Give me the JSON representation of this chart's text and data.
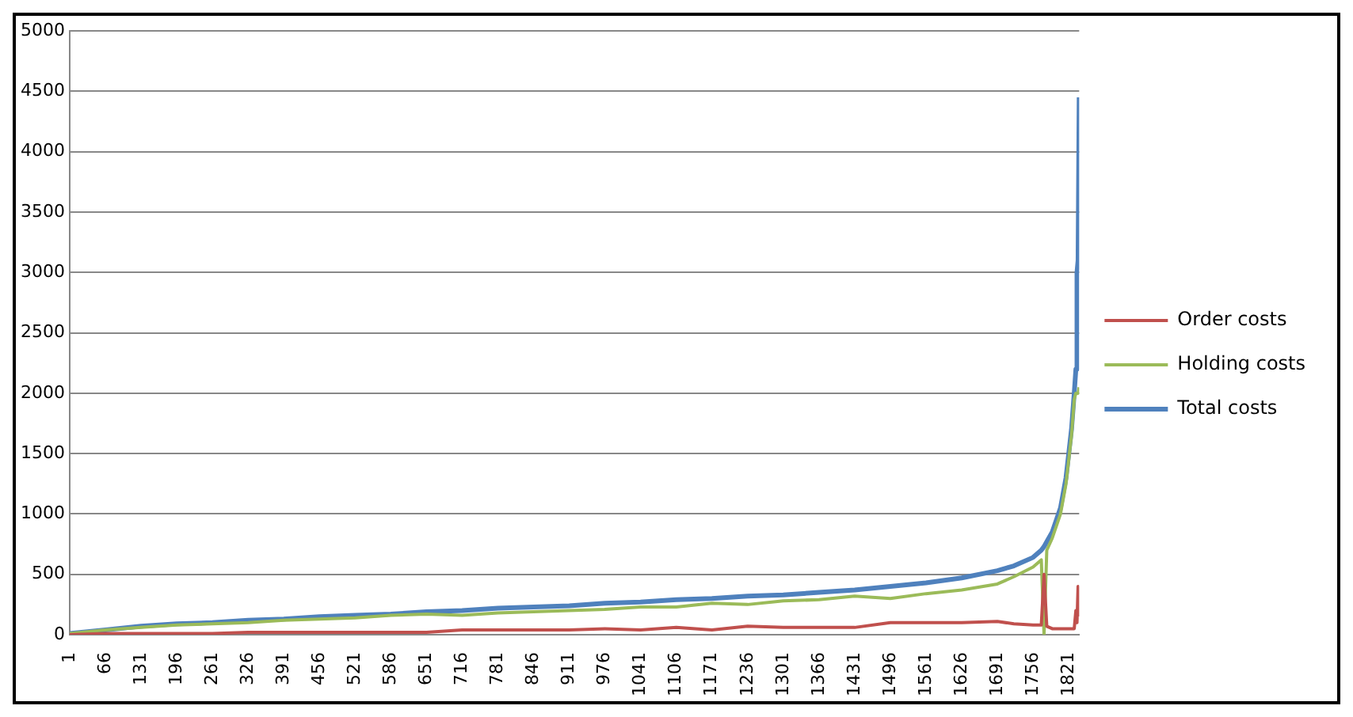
{
  "chart_data": {
    "type": "line",
    "x": [
      1,
      66,
      131,
      196,
      261,
      326,
      391,
      456,
      521,
      586,
      651,
      716,
      781,
      846,
      911,
      976,
      1041,
      1106,
      1171,
      1236,
      1301,
      1366,
      1431,
      1496,
      1561,
      1626,
      1691,
      1721,
      1756,
      1771,
      1776,
      1781,
      1791,
      1806,
      1816,
      1826,
      1831,
      1834,
      1836,
      1838,
      1840
    ],
    "series": [
      {
        "name": "Order costs",
        "color": "#c0504d",
        "values": [
          0,
          10,
          10,
          10,
          10,
          20,
          20,
          20,
          20,
          20,
          20,
          40,
          40,
          40,
          40,
          50,
          40,
          60,
          40,
          70,
          60,
          60,
          60,
          100,
          100,
          100,
          110,
          90,
          80,
          80,
          500,
          70,
          50,
          50,
          50,
          50,
          50,
          200,
          100,
          400,
          150
        ]
      },
      {
        "name": "Holding costs",
        "color": "#9bbb59",
        "values": [
          10,
          40,
          60,
          80,
          90,
          100,
          120,
          130,
          140,
          160,
          170,
          160,
          180,
          190,
          200,
          210,
          230,
          230,
          260,
          250,
          280,
          290,
          320,
          300,
          340,
          370,
          420,
          480,
          560,
          620,
          0,
          700,
          800,
          1000,
          1250,
          1650,
          1950,
          2000,
          2000,
          2000,
          2050
        ]
      },
      {
        "name": "Total costs",
        "color": "#4f81bd",
        "values": [
          10,
          40,
          70,
          90,
          100,
          120,
          130,
          150,
          160,
          170,
          190,
          200,
          220,
          230,
          240,
          260,
          270,
          290,
          300,
          320,
          330,
          350,
          370,
          400,
          430,
          470,
          530,
          570,
          640,
          700,
          730,
          770,
          850,
          1050,
          1300,
          1700,
          2000,
          2200,
          3000,
          3100,
          4450
        ]
      }
    ],
    "xlim": [
      1,
      1840
    ],
    "xticks": [
      1,
      66,
      131,
      196,
      261,
      326,
      391,
      456,
      521,
      586,
      651,
      716,
      781,
      846,
      911,
      976,
      1041,
      1106,
      1171,
      1236,
      1301,
      1366,
      1431,
      1496,
      1561,
      1626,
      1691,
      1756,
      1821
    ],
    "ylim": [
      0,
      5000
    ],
    "yticks": [
      0,
      500,
      1000,
      1500,
      2000,
      2500,
      3000,
      3500,
      4000,
      4500,
      5000
    ],
    "grid": "y",
    "legend": "right",
    "marker": "none",
    "line_style": "solid"
  }
}
